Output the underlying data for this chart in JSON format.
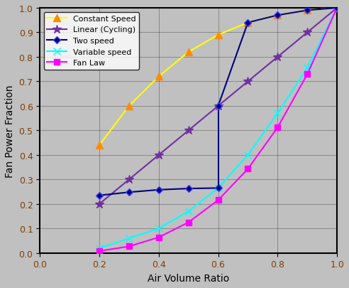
{
  "title": "",
  "xlabel": "Air Volume Ratio",
  "ylabel": "Fan Power Fraction",
  "xlim": [
    0,
    1.0
  ],
  "ylim": [
    0,
    1.0
  ],
  "xticks": [
    0,
    0.2,
    0.4,
    0.6,
    0.8,
    1.0
  ],
  "yticks": [
    0,
    0.1,
    0.2,
    0.3,
    0.4,
    0.5,
    0.6,
    0.7,
    0.8,
    0.9,
    1.0
  ],
  "background_color": "#c0c0c0",
  "plot_bg_color": "#c0c0c0",
  "constant_speed": {
    "x": [
      0.2,
      0.3,
      0.4,
      0.5,
      0.6,
      0.7,
      0.8,
      0.9,
      1.0
    ],
    "y": [
      0.44,
      0.6,
      0.72,
      0.82,
      0.89,
      0.94,
      0.97,
      0.99,
      1.0
    ],
    "color": "#ffff00",
    "marker": "^",
    "marker_facecolor": "#ff8c00",
    "marker_edgecolor": "#ff8c00",
    "label": "Constant Speed",
    "linewidth": 1.5,
    "markersize": 7
  },
  "linear_cycling": {
    "x": [
      0.2,
      0.3,
      0.4,
      0.5,
      0.6,
      0.7,
      0.8,
      0.9,
      1.0
    ],
    "y": [
      0.2,
      0.3,
      0.4,
      0.5,
      0.6,
      0.7,
      0.8,
      0.9,
      1.0
    ],
    "color": "#7030a0",
    "marker": "*",
    "marker_facecolor": "#7030a0",
    "marker_edgecolor": "#7030a0",
    "label": "Linear (Cycling)",
    "linewidth": 1.5,
    "markersize": 9
  },
  "two_speed_low": {
    "x": [
      0.2,
      0.3,
      0.4,
      0.5,
      0.6
    ],
    "y": [
      0.235,
      0.248,
      0.258,
      0.263,
      0.265
    ],
    "color": "#000080",
    "marker": "D",
    "marker_facecolor": "#000080",
    "marker_edgecolor": "#4040ff",
    "linewidth": 1.5,
    "markersize": 5
  },
  "two_speed_high": {
    "x": [
      0.6,
      0.7,
      0.8,
      0.9,
      1.0
    ],
    "y": [
      0.6,
      0.94,
      0.97,
      0.99,
      1.0
    ],
    "color": "#000080",
    "marker": "D",
    "marker_facecolor": "#000080",
    "marker_edgecolor": "#4040ff",
    "label": "Two speed",
    "linewidth": 1.5,
    "markersize": 5
  },
  "two_speed_vertical": {
    "x": [
      0.6,
      0.6
    ],
    "y": [
      0.265,
      0.6
    ],
    "color": "#000080",
    "linewidth": 1.5
  },
  "variable_speed": {
    "x": [
      0.2,
      0.3,
      0.4,
      0.5,
      0.6,
      0.7,
      0.8,
      0.9,
      1.0
    ],
    "y": [
      0.02,
      0.06,
      0.1,
      0.17,
      0.265,
      0.4,
      0.57,
      0.755,
      1.0
    ],
    "color": "#00ffff",
    "marker": "x",
    "marker_facecolor": "#00ffff",
    "marker_edgecolor": "#00ffff",
    "label": "Variable speed",
    "linewidth": 1.5,
    "markersize": 7
  },
  "fan_law": {
    "x": [
      0.2,
      0.3,
      0.4,
      0.5,
      0.6,
      0.7,
      0.8,
      0.9,
      1.0
    ],
    "y": [
      0.008,
      0.027,
      0.064,
      0.125,
      0.216,
      0.343,
      0.512,
      0.729,
      1.0
    ],
    "color": "#ff00ff",
    "marker": "s",
    "marker_facecolor": "#ff00ff",
    "marker_edgecolor": "#ff00ff",
    "label": "Fan Law",
    "linewidth": 1.5,
    "markersize": 6
  }
}
